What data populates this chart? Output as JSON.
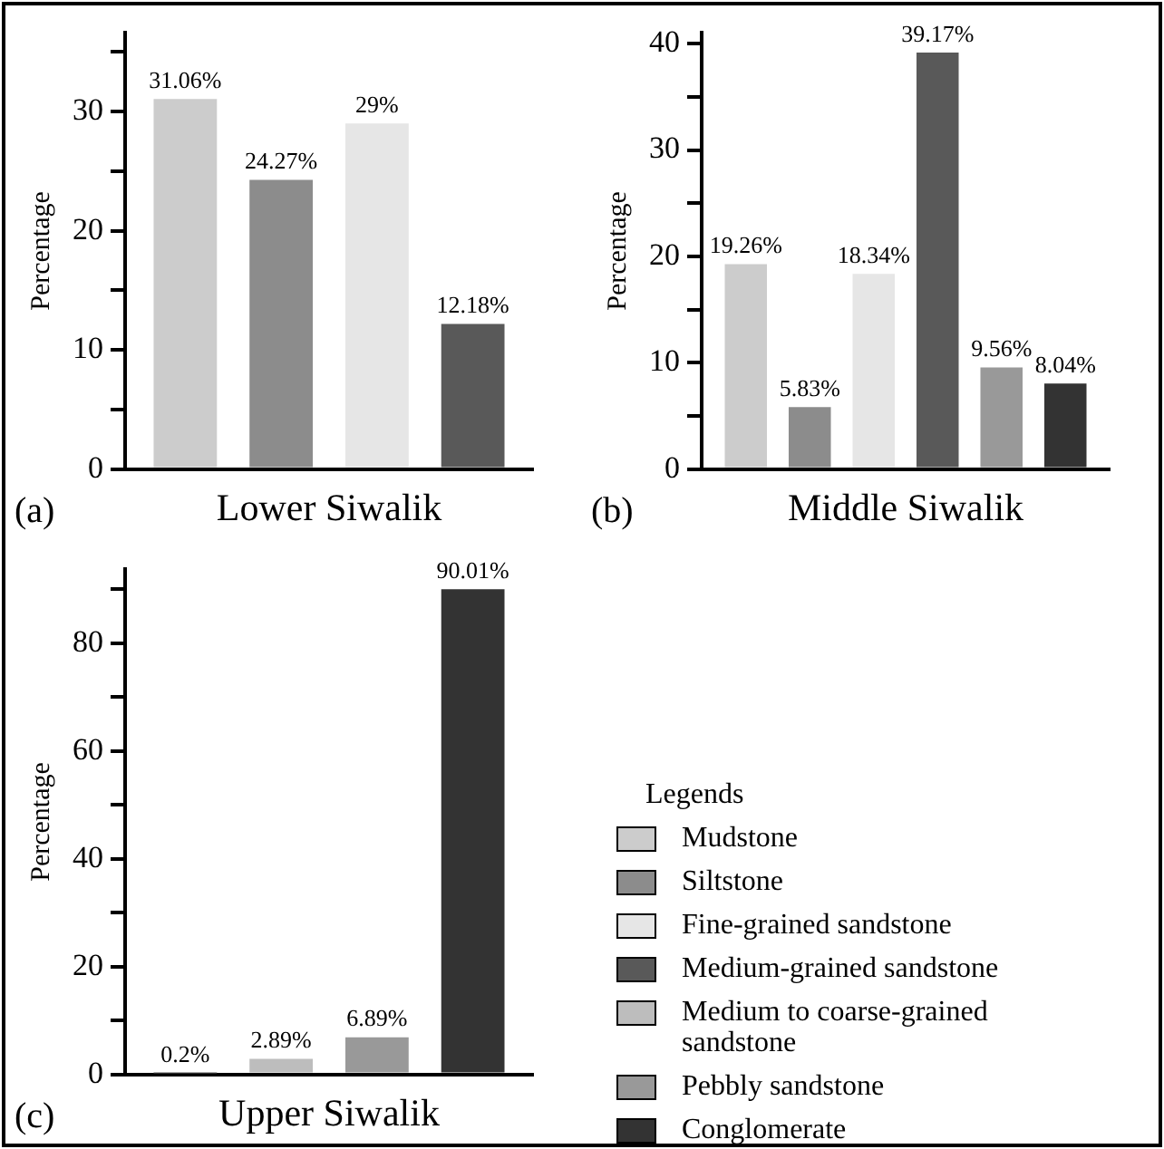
{
  "chart_data": [
    {
      "type": "bar",
      "xlabel": "Lower Siwalik",
      "ylabel": "Percentage",
      "annotations": [
        "(a)"
      ],
      "categories": [
        null
      ],
      "ylim": [
        0,
        36.6
      ],
      "yticks": [
        0,
        {
          "value": 5,
          "label": null
        },
        10,
        {
          "value": 15,
          "label": null
        },
        20,
        {
          "value": 25,
          "label": null
        },
        30,
        {
          "value": 35,
          "label": null
        }
      ],
      "series": [
        {
          "color": "#cccccc",
          "values": [
            31.06
          ],
          "value_labels": [
            "31.06%"
          ]
        },
        {
          "color": "#8c8c8c",
          "values": [
            24.27
          ],
          "value_labels": [
            "24.27%"
          ]
        },
        {
          "color": "#e6e6e6",
          "values": [
            29
          ],
          "value_labels": [
            "29%"
          ]
        },
        {
          "color": "#595959",
          "values": [
            12.18
          ],
          "value_labels": [
            "12.18%"
          ]
        }
      ]
    },
    {
      "type": "bar",
      "xlabel": "Middle Siwalik",
      "ylabel": "Percentage",
      "annotations": [
        "(b)"
      ],
      "legend": "bottom",
      "legend_title": "Legends",
      "categories": [
        null
      ],
      "ylim": [
        0,
        41
      ],
      "yticks": [
        0,
        {
          "value": 5,
          "label": null
        },
        10,
        {
          "value": 15,
          "label": null
        },
        20,
        {
          "value": 25,
          "label": null
        },
        30,
        {
          "value": 35,
          "label": null
        },
        40
      ],
      "series": [
        {
          "name": "Mudstone",
          "color": "#cccccc",
          "values": [
            19.26
          ],
          "value_labels": [
            "19.26%"
          ]
        },
        {
          "name": "Siltstone",
          "color": "#8c8c8c",
          "values": [
            5.83
          ],
          "value_labels": [
            "5.83%"
          ]
        },
        {
          "name": "Fine-grained sandstone",
          "color": "#e6e6e6",
          "values": [
            18.34
          ],
          "value_labels": [
            "18.34%"
          ]
        },
        {
          "name": "Medium-grained sandstone",
          "color": "#595959",
          "values": [
            39.17
          ],
          "value_labels": [
            "39.17%"
          ]
        },
        {
          "name": "Pebbly sandstone",
          "color": "#999999",
          "values": [
            9.56
          ],
          "value_labels": [
            "9.56%"
          ]
        },
        {
          "name": "Conglomerate",
          "color": "#333333",
          "values": [
            8.04
          ],
          "value_labels": [
            "8.04%"
          ]
        }
      ]
    },
    {
      "type": "bar",
      "xlabel": "Upper Siwalik",
      "ylabel": "Percentage",
      "annotations": [
        "(c)"
      ],
      "categories": [
        null
      ],
      "ylim": [
        0,
        93.7
      ],
      "yticks": [
        0,
        {
          "value": 10,
          "label": null
        },
        20,
        {
          "value": 30,
          "label": null
        },
        40,
        {
          "value": 50,
          "label": null
        },
        60,
        {
          "value": 70,
          "label": null
        },
        80,
        {
          "value": 90,
          "label": null
        }
      ],
      "series": [
        {
          "color": "#595959",
          "values": [
            0.2
          ],
          "value_labels": [
            "0.2%"
          ]
        },
        {
          "name": "Medium to coarse-grained sandstone",
          "color": "#bdbdbd",
          "values": [
            2.89
          ],
          "value_labels": [
            "2.89%"
          ]
        },
        {
          "color": "#999999",
          "values": [
            6.89
          ],
          "value_labels": [
            "6.89%"
          ]
        },
        {
          "color": "#333333",
          "values": [
            90.01
          ],
          "value_labels": [
            "90.01%"
          ]
        }
      ]
    }
  ]
}
